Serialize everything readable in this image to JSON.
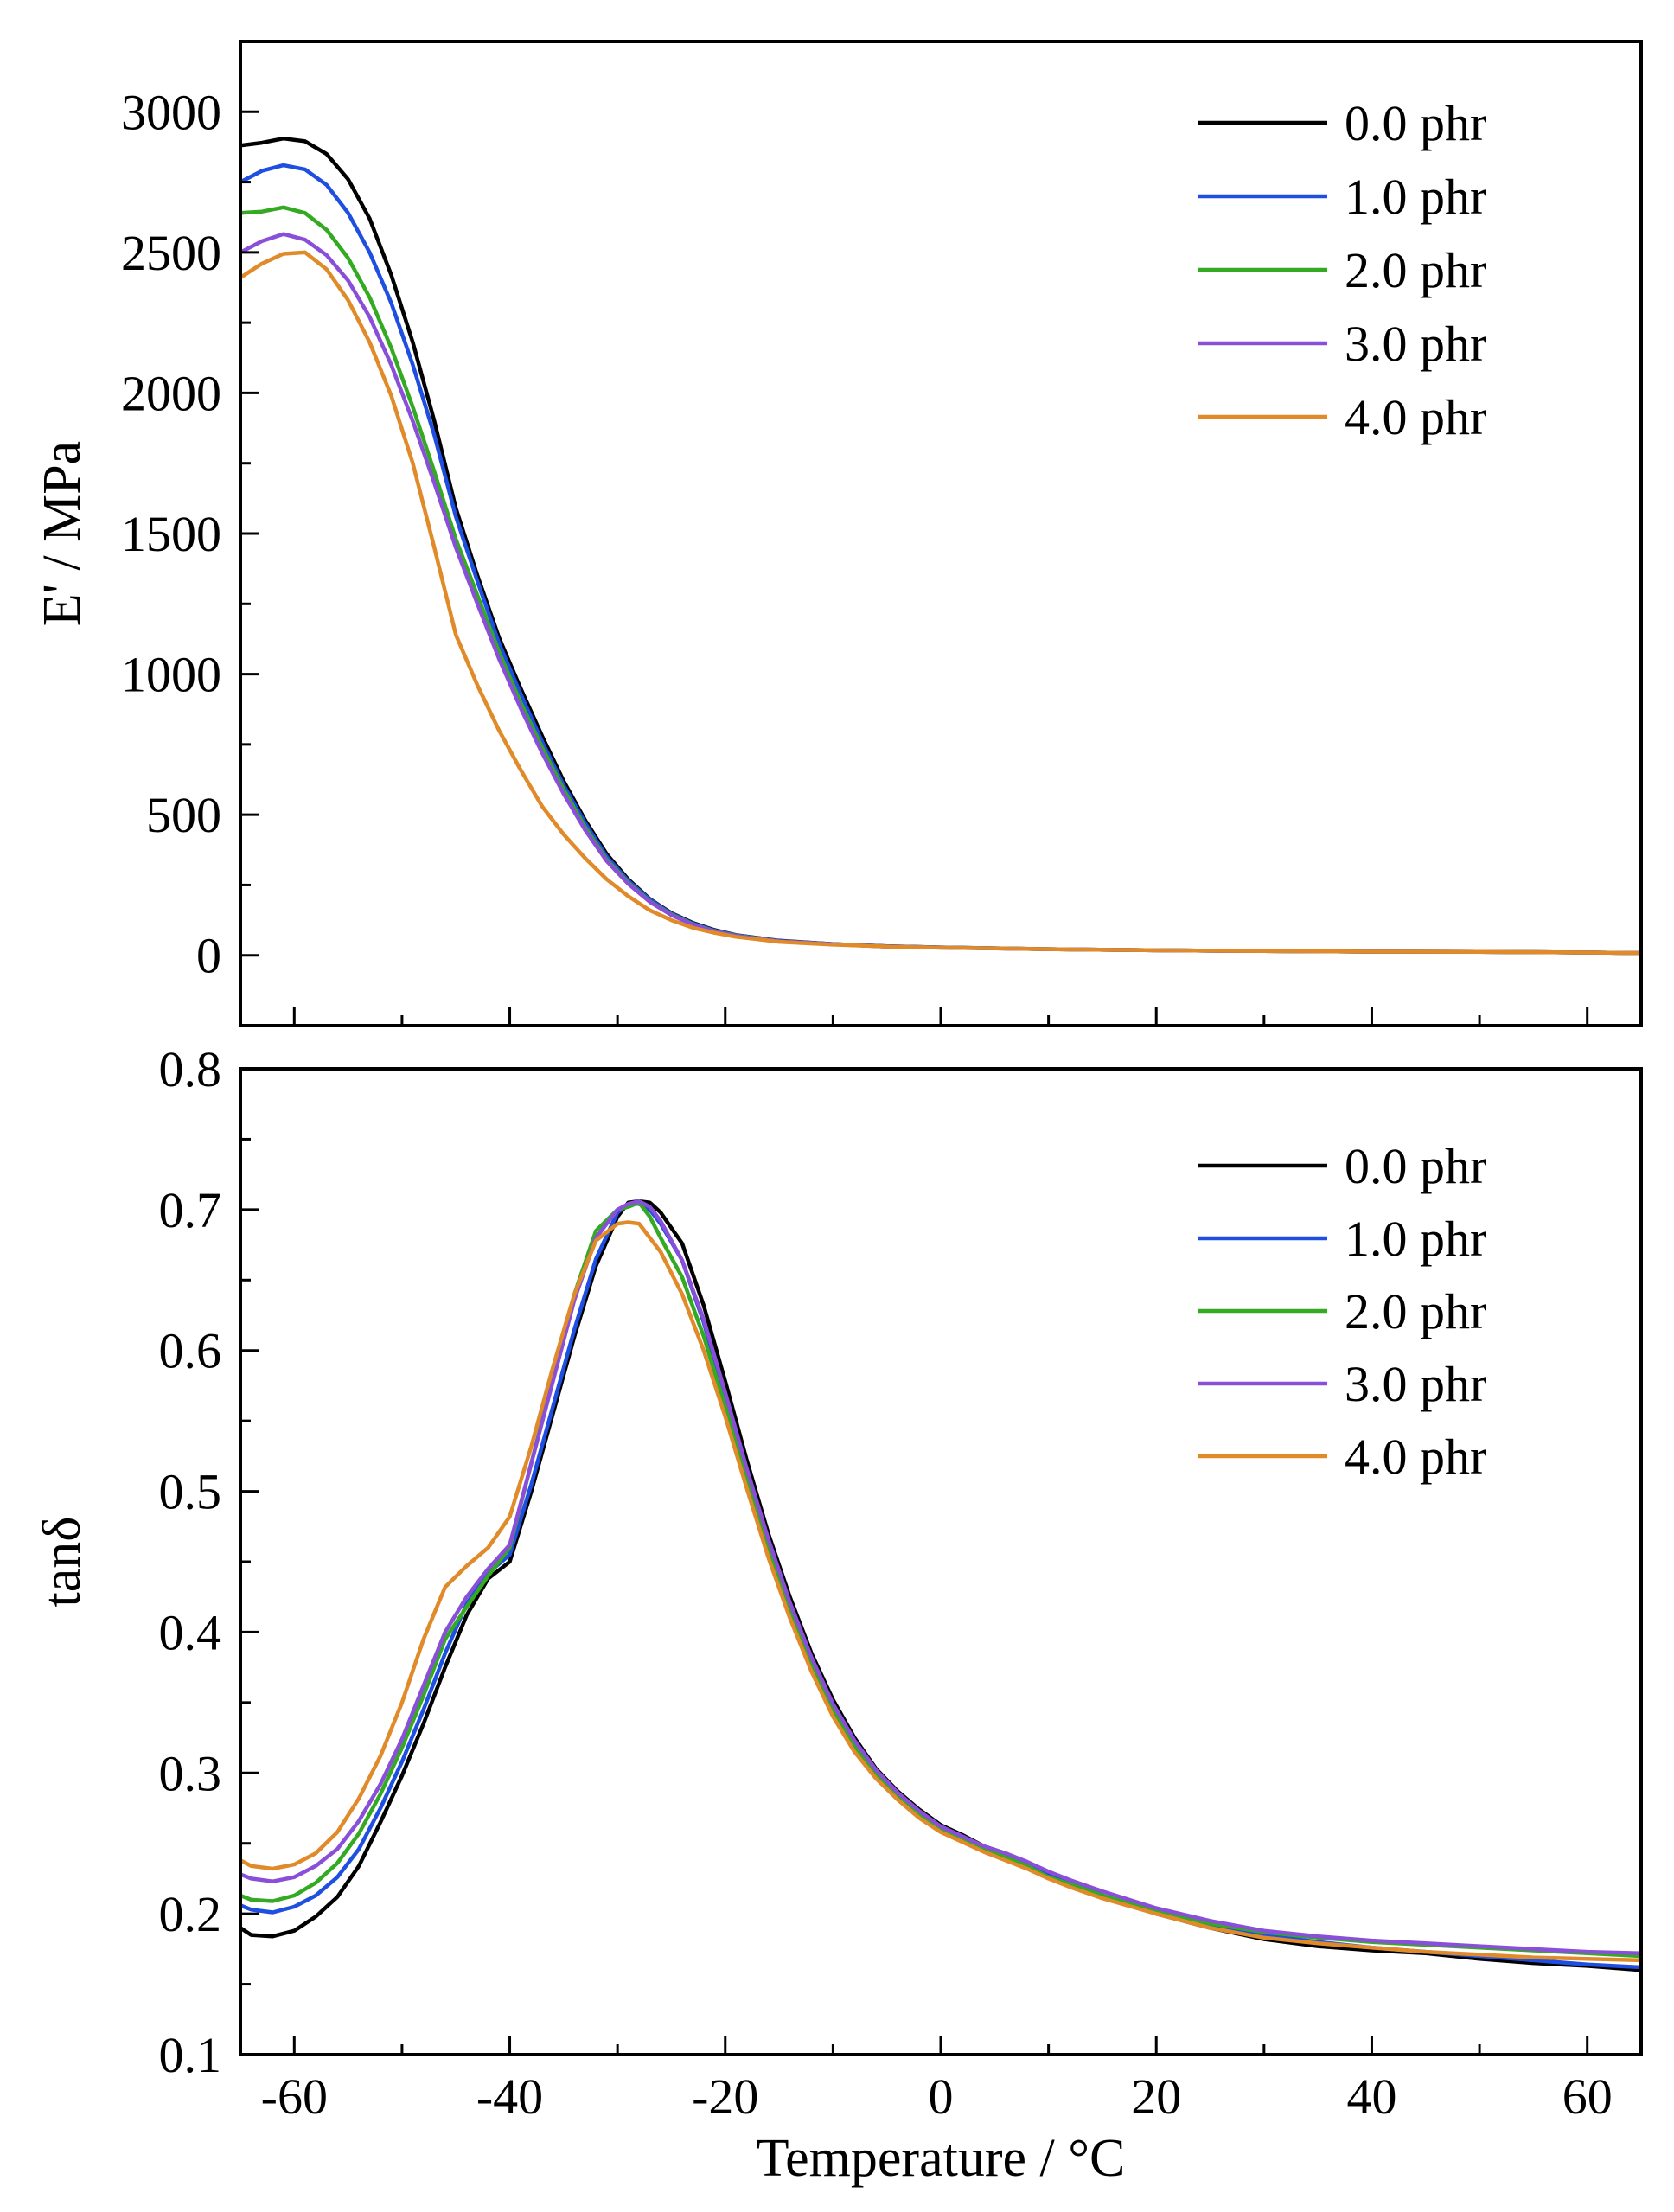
{
  "chart_data": [
    {
      "type": "line",
      "title": "",
      "xlabel": "",
      "ylabel": "E' / MPa",
      "xlim": [
        -65,
        65
      ],
      "ylim": [
        -250,
        3250
      ],
      "xticks": [
        -60,
        -40,
        -20,
        0,
        20,
        40,
        60
      ],
      "xtick_labels": [],
      "yticks": [
        0,
        500,
        1000,
        1500,
        2000,
        2500,
        3000
      ],
      "ytick_labels": [
        "0",
        "500",
        "1000",
        "1500",
        "2000",
        "2500",
        "3000"
      ],
      "legend": "top-right",
      "grid": false,
      "series": [
        {
          "name": "0.0 phr",
          "color": "#000000",
          "x": [
            -65,
            -63,
            -61,
            -59,
            -57,
            -55,
            -53,
            -51,
            -49,
            -47,
            -45,
            -43,
            -41,
            -39,
            -37,
            -35,
            -33,
            -31,
            -29,
            -27,
            -25,
            -23,
            -21,
            -19,
            -17,
            -15,
            -10,
            -5,
            0,
            10,
            20,
            30,
            40,
            50,
            60,
            65
          ],
          "y": [
            2880,
            2890,
            2905,
            2895,
            2850,
            2760,
            2620,
            2420,
            2180,
            1900,
            1590,
            1350,
            1130,
            950,
            780,
            620,
            480,
            360,
            270,
            200,
            150,
            115,
            90,
            72,
            62,
            52,
            40,
            32,
            28,
            22,
            18,
            15,
            13,
            12,
            10,
            8
          ]
        },
        {
          "name": "1.0 phr",
          "color": "#1f4fe0",
          "x": [
            -65,
            -63,
            -61,
            -59,
            -57,
            -55,
            -53,
            -51,
            -49,
            -47,
            -45,
            -43,
            -41,
            -39,
            -37,
            -35,
            -33,
            -31,
            -29,
            -27,
            -25,
            -23,
            -21,
            -19,
            -17,
            -15,
            -10,
            -5,
            0,
            10,
            20,
            30,
            40,
            50,
            60,
            65
          ],
          "y": [
            2750,
            2790,
            2810,
            2795,
            2740,
            2640,
            2500,
            2320,
            2100,
            1850,
            1560,
            1330,
            1110,
            930,
            760,
            605,
            470,
            350,
            265,
            198,
            148,
            113,
            88,
            71,
            61,
            51,
            40,
            32,
            28,
            22,
            18,
            15,
            13,
            12,
            10,
            8
          ]
        },
        {
          "name": "2.0 phr",
          "color": "#33aa22",
          "x": [
            -65,
            -63,
            -61,
            -59,
            -57,
            -55,
            -53,
            -51,
            -49,
            -47,
            -45,
            -43,
            -41,
            -39,
            -37,
            -35,
            -33,
            -31,
            -29,
            -27,
            -25,
            -23,
            -21,
            -19,
            -17,
            -15,
            -10,
            -5,
            0,
            10,
            20,
            30,
            40,
            50,
            60,
            65
          ],
          "y": [
            2640,
            2645,
            2660,
            2640,
            2580,
            2480,
            2340,
            2160,
            1950,
            1720,
            1480,
            1280,
            1080,
            900,
            740,
            590,
            455,
            340,
            258,
            192,
            145,
            110,
            86,
            70,
            60,
            50,
            39,
            31,
            27,
            22,
            18,
            15,
            13,
            12,
            10,
            8
          ]
        },
        {
          "name": "3.0 phr",
          "color": "#8a4fd8",
          "x": [
            -65,
            -63,
            -61,
            -59,
            -57,
            -55,
            -53,
            -51,
            -49,
            -47,
            -45,
            -43,
            -41,
            -39,
            -37,
            -35,
            -33,
            -31,
            -29,
            -27,
            -25,
            -23,
            -21,
            -19,
            -17,
            -15,
            -10,
            -5,
            0,
            10,
            20,
            30,
            40,
            50,
            60,
            65
          ],
          "y": [
            2500,
            2540,
            2565,
            2545,
            2490,
            2400,
            2270,
            2100,
            1900,
            1680,
            1450,
            1250,
            1055,
            880,
            720,
            575,
            445,
            335,
            254,
            190,
            143,
            109,
            85,
            69,
            59,
            50,
            39,
            31,
            27,
            22,
            18,
            15,
            13,
            12,
            10,
            8
          ]
        },
        {
          "name": "4.0 phr",
          "color": "#e08a2a",
          "x": [
            -65,
            -63,
            -61,
            -59,
            -57,
            -55,
            -53,
            -51,
            -49,
            -47,
            -45,
            -43,
            -41,
            -39,
            -37,
            -35,
            -33,
            -31,
            -29,
            -27,
            -25,
            -23,
            -21,
            -19,
            -17,
            -15,
            -10,
            -5,
            0,
            10,
            20,
            30,
            40,
            50,
            60,
            65
          ],
          "y": [
            2410,
            2460,
            2495,
            2500,
            2440,
            2330,
            2180,
            1990,
            1750,
            1450,
            1140,
            960,
            800,
            660,
            530,
            430,
            345,
            270,
            210,
            160,
            125,
            98,
            80,
            66,
            57,
            48,
            38,
            31,
            27,
            22,
            18,
            15,
            13,
            12,
            10,
            8
          ]
        }
      ]
    },
    {
      "type": "line",
      "title": "",
      "xlabel": "Temperature / °C",
      "ylabel": "tanδ",
      "xlim": [
        -65,
        65
      ],
      "ylim": [
        0.1,
        0.8
      ],
      "xticks": [
        -60,
        -40,
        -20,
        0,
        20,
        40,
        60
      ],
      "xtick_labels": [
        "-60",
        "-40",
        "-20",
        "0",
        "20",
        "40",
        "60"
      ],
      "yticks": [
        0.1,
        0.2,
        0.3,
        0.4,
        0.5,
        0.6,
        0.7,
        0.8
      ],
      "ytick_labels": [
        "0.1",
        "0.2",
        "0.3",
        "0.4",
        "0.5",
        "0.6",
        "0.7",
        "0.8"
      ],
      "legend": "top-right",
      "grid": false,
      "series": [
        {
          "name": "0.0 phr",
          "color": "#000000",
          "x": [
            -65,
            -64,
            -62,
            -60,
            -58,
            -56,
            -54,
            -52,
            -50,
            -48,
            -46,
            -44,
            -42,
            -40,
            -38,
            -36,
            -34,
            -32,
            -30,
            -29,
            -28,
            -27,
            -26,
            -24,
            -22,
            -20,
            -18,
            -16,
            -14,
            -12,
            -10,
            -8,
            -6,
            -4,
            -2,
            0,
            2,
            4,
            6,
            8,
            10,
            12,
            15,
            20,
            25,
            30,
            35,
            40,
            45,
            50,
            55,
            60,
            65
          ],
          "y": [
            0.19,
            0.185,
            0.184,
            0.188,
            0.198,
            0.212,
            0.234,
            0.265,
            0.298,
            0.335,
            0.375,
            0.412,
            0.438,
            0.45,
            0.5,
            0.555,
            0.61,
            0.66,
            0.695,
            0.705,
            0.706,
            0.705,
            0.698,
            0.676,
            0.632,
            0.578,
            0.522,
            0.47,
            0.425,
            0.385,
            0.352,
            0.325,
            0.303,
            0.287,
            0.274,
            0.263,
            0.256,
            0.248,
            0.243,
            0.236,
            0.228,
            0.222,
            0.213,
            0.2,
            0.19,
            0.182,
            0.177,
            0.174,
            0.172,
            0.168,
            0.165,
            0.163,
            0.16
          ]
        },
        {
          "name": "1.0 phr",
          "color": "#1f4fe0",
          "x": [
            -65,
            -64,
            -62,
            -60,
            -58,
            -56,
            -54,
            -52,
            -50,
            -48,
            -46,
            -44,
            -42,
            -40,
            -38,
            -36,
            -34,
            -32,
            -30,
            -29,
            -28,
            -27,
            -26,
            -24,
            -22,
            -20,
            -18,
            -16,
            -14,
            -12,
            -10,
            -8,
            -6,
            -4,
            -2,
            0,
            2,
            4,
            6,
            8,
            10,
            12,
            15,
            20,
            25,
            30,
            35,
            40,
            45,
            50,
            55,
            60,
            65
          ],
          "y": [
            0.206,
            0.203,
            0.201,
            0.205,
            0.213,
            0.226,
            0.246,
            0.275,
            0.308,
            0.345,
            0.385,
            0.42,
            0.442,
            0.455,
            0.505,
            0.56,
            0.615,
            0.665,
            0.698,
            0.704,
            0.704,
            0.7,
            0.69,
            0.664,
            0.62,
            0.566,
            0.512,
            0.462,
            0.418,
            0.38,
            0.348,
            0.322,
            0.301,
            0.285,
            0.272,
            0.262,
            0.255,
            0.247,
            0.242,
            0.235,
            0.227,
            0.222,
            0.213,
            0.201,
            0.192,
            0.185,
            0.18,
            0.176,
            0.173,
            0.17,
            0.167,
            0.164,
            0.162
          ]
        },
        {
          "name": "2.0 phr",
          "color": "#33aa22",
          "x": [
            -65,
            -64,
            -62,
            -60,
            -58,
            -56,
            -54,
            -52,
            -50,
            -48,
            -46,
            -44,
            -42,
            -40,
            -38,
            -36,
            -34,
            -32,
            -30,
            -29,
            -28,
            -27,
            -26,
            -24,
            -22,
            -20,
            -18,
            -16,
            -14,
            -12,
            -10,
            -8,
            -6,
            -4,
            -2,
            0,
            2,
            4,
            6,
            8,
            10,
            12,
            15,
            20,
            25,
            30,
            35,
            40,
            45,
            50,
            55,
            60,
            65
          ],
          "y": [
            0.213,
            0.21,
            0.209,
            0.213,
            0.222,
            0.236,
            0.257,
            0.285,
            0.318,
            0.355,
            0.395,
            0.418,
            0.44,
            0.46,
            0.52,
            0.58,
            0.64,
            0.685,
            0.7,
            0.702,
            0.705,
            0.695,
            0.68,
            0.652,
            0.61,
            0.56,
            0.507,
            0.458,
            0.414,
            0.376,
            0.344,
            0.319,
            0.299,
            0.283,
            0.27,
            0.26,
            0.253,
            0.246,
            0.24,
            0.234,
            0.226,
            0.221,
            0.213,
            0.202,
            0.193,
            0.187,
            0.183,
            0.18,
            0.178,
            0.176,
            0.174,
            0.172,
            0.17
          ]
        },
        {
          "name": "3.0 phr",
          "color": "#8a4fd8",
          "x": [
            -65,
            -64,
            -62,
            -60,
            -58,
            -56,
            -54,
            -52,
            -50,
            -48,
            -46,
            -44,
            -42,
            -40,
            -38,
            -36,
            -34,
            -32,
            -30,
            -29,
            -28,
            -27,
            -26,
            -24,
            -22,
            -20,
            -18,
            -16,
            -14,
            -12,
            -10,
            -8,
            -6,
            -4,
            -2,
            0,
            2,
            4,
            6,
            8,
            10,
            12,
            15,
            20,
            25,
            30,
            35,
            40,
            45,
            50,
            55,
            60,
            65
          ],
          "y": [
            0.228,
            0.225,
            0.223,
            0.226,
            0.234,
            0.246,
            0.266,
            0.292,
            0.324,
            0.362,
            0.4,
            0.425,
            0.445,
            0.462,
            0.52,
            0.578,
            0.636,
            0.68,
            0.7,
            0.704,
            0.706,
            0.702,
            0.692,
            0.664,
            0.622,
            0.57,
            0.516,
            0.466,
            0.421,
            0.382,
            0.349,
            0.323,
            0.302,
            0.286,
            0.273,
            0.262,
            0.255,
            0.248,
            0.243,
            0.237,
            0.23,
            0.224,
            0.216,
            0.204,
            0.195,
            0.188,
            0.184,
            0.181,
            0.179,
            0.177,
            0.175,
            0.173,
            0.172
          ]
        },
        {
          "name": "4.0 phr",
          "color": "#e08a2a",
          "x": [
            -65,
            -64,
            -62,
            -60,
            -58,
            -56,
            -54,
            -52,
            -50,
            -48,
            -46,
            -44,
            -42,
            -40,
            -38,
            -36,
            -34,
            -32,
            -30,
            -29,
            -28,
            -27,
            -26,
            -24,
            -22,
            -20,
            -18,
            -16,
            -14,
            -12,
            -10,
            -8,
            -6,
            -4,
            -2,
            0,
            2,
            4,
            6,
            8,
            10,
            12,
            15,
            20,
            25,
            30,
            35,
            40,
            45,
            50,
            55,
            60,
            65
          ],
          "y": [
            0.238,
            0.234,
            0.232,
            0.235,
            0.243,
            0.258,
            0.282,
            0.312,
            0.35,
            0.395,
            0.432,
            0.447,
            0.46,
            0.482,
            0.532,
            0.588,
            0.64,
            0.678,
            0.69,
            0.691,
            0.69,
            0.68,
            0.67,
            0.64,
            0.6,
            0.553,
            0.502,
            0.453,
            0.41,
            0.372,
            0.34,
            0.315,
            0.296,
            0.281,
            0.268,
            0.258,
            0.251,
            0.244,
            0.238,
            0.232,
            0.225,
            0.219,
            0.211,
            0.2,
            0.19,
            0.183,
            0.179,
            0.176,
            0.173,
            0.171,
            0.169,
            0.168,
            0.167
          ]
        }
      ]
    }
  ]
}
